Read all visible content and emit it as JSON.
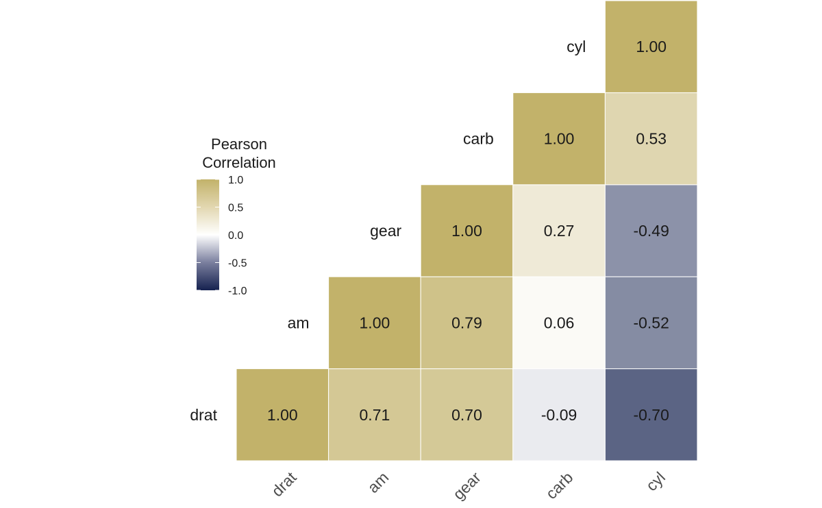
{
  "chart_data": {
    "type": "heatmap",
    "variables": [
      "drat",
      "am",
      "gear",
      "carb",
      "cyl"
    ],
    "matrix": [
      [
        1.0,
        0.71,
        0.7,
        -0.09,
        -0.7
      ],
      [
        null,
        1.0,
        0.79,
        0.06,
        -0.52
      ],
      [
        null,
        null,
        1.0,
        0.27,
        -0.49
      ],
      [
        null,
        null,
        null,
        1.0,
        0.53
      ],
      [
        null,
        null,
        null,
        null,
        1.0
      ]
    ],
    "cell_labels": [
      [
        "1.00",
        "0.71",
        "0.70",
        "-0.09",
        "-0.70"
      ],
      [
        null,
        "1.00",
        "0.79",
        "0.06",
        "-0.52"
      ],
      [
        null,
        null,
        "1.00",
        "0.27",
        "-0.49"
      ],
      [
        null,
        null,
        null,
        "1.00",
        "0.53"
      ],
      [
        null,
        null,
        null,
        null,
        "1.00"
      ]
    ],
    "legend": {
      "title_lines": [
        "Pearson",
        "Correlation"
      ],
      "ticks": [
        1.0,
        0.5,
        0.0,
        -0.5,
        -1.0
      ],
      "tick_labels": [
        "1.0",
        "0.5",
        "0.0",
        "-0.5",
        "-1.0"
      ],
      "range": [
        -1.0,
        1.0
      ],
      "placement": "left"
    },
    "color_scale": {
      "low": "#15214f",
      "mid": "#ffffff",
      "high": "#c2b26a"
    }
  }
}
